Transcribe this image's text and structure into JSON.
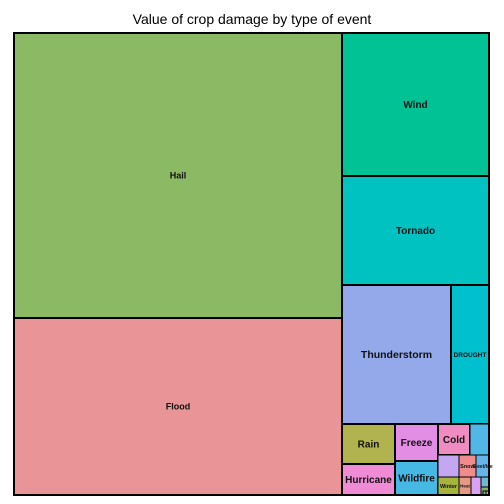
{
  "chart_data": {
    "type": "treemap",
    "title": "Value of crop damage by type of event",
    "border_color": "#000000",
    "tiles": [
      {
        "label": "Hail",
        "color": "#8cb963"
      },
      {
        "label": "Flood",
        "color": "#e99497"
      },
      {
        "label": "Wind",
        "color": "#00c295"
      },
      {
        "label": "Tornado",
        "color": "#00c2c0"
      },
      {
        "label": "Thunderstorm",
        "color": "#93a9ea"
      },
      {
        "label": "DROUGHT",
        "color": "#00bfcf"
      },
      {
        "label": "Rain",
        "color": "#b1b34e"
      },
      {
        "label": "Hurricane",
        "color": "#f08cd6"
      },
      {
        "label": "Freeze",
        "color": "#e38ee5"
      },
      {
        "label": "Wildfire",
        "color": "#45b8e4"
      },
      {
        "label": "Cold",
        "color": "#f08cc2"
      },
      {
        "label": "Winter",
        "color": "#a6b43c"
      },
      {
        "label": "Heat",
        "color": "#e69a86"
      },
      {
        "label": "Snow",
        "color": "#f08c8c"
      },
      {
        "label": "Sleet/Ice",
        "color": "#67b5e8"
      },
      {
        "label": "",
        "color": "#4fb8e6"
      },
      {
        "label": "",
        "color": "#c5a6f0"
      },
      {
        "label": "",
        "color": "#d7a3f2"
      },
      {
        "label": "",
        "color": "#6bbad0"
      },
      {
        "label": "",
        "color": "#8db06a"
      },
      {
        "label": "",
        "color": "#e9a15f"
      },
      {
        "label": "",
        "color": "#63bfa1"
      }
    ]
  }
}
